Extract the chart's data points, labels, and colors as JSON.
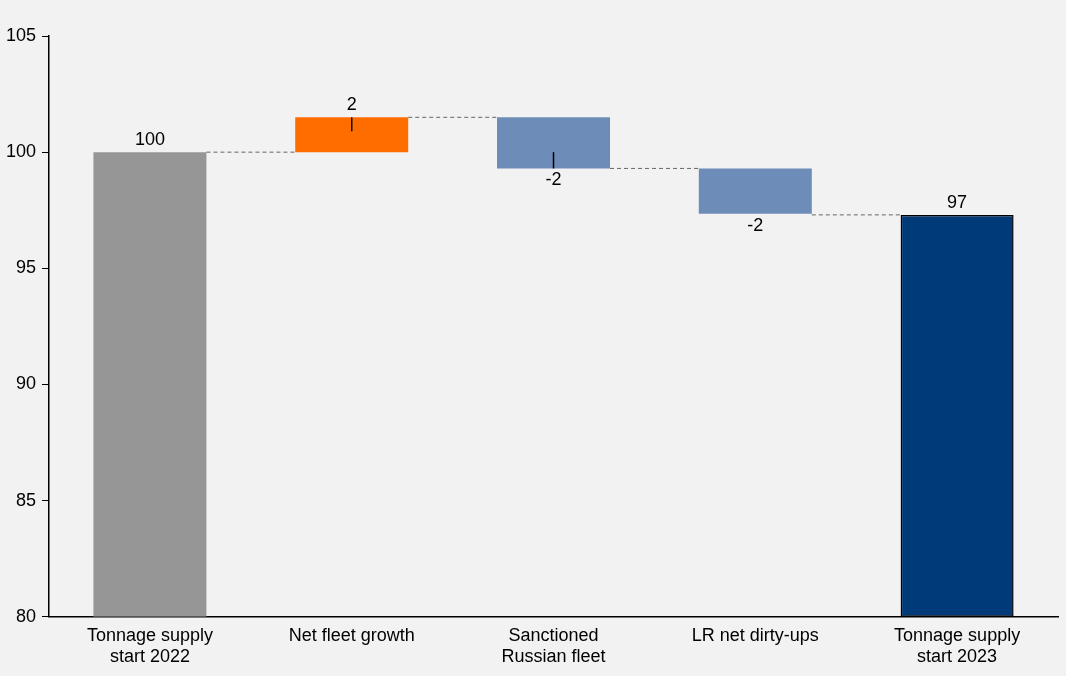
{
  "chart_data": {
    "type": "bar",
    "categories": [
      "Tonnage supply start 2022",
      "Net fleet growth",
      "Sanctioned Russian fleet",
      "LR net dirty-ups",
      "Tonnage supply start 2023"
    ],
    "base": [
      80,
      100,
      101.5,
      99.3,
      80
    ],
    "values": [
      20,
      1.5,
      -2.2,
      -1.95,
      17.3
    ],
    "colors": [
      "#969696",
      "#ff6d00",
      "#6e8cb8",
      "#6e8cb8",
      "#003a78"
    ],
    "value_labels": [
      "100",
      "2",
      "-2",
      "-2",
      "97"
    ],
    "errors": [
      null,
      [
        100.9,
        101.5
      ],
      [
        99.3,
        100
      ],
      null,
      null
    ],
    "ref_lines": [
      {
        "axis": "y",
        "value": 100,
        "color": "#666666",
        "line_style": "dashed"
      },
      {
        "axis": "y",
        "value": 101.5,
        "color": "#666666",
        "line_style": "dashed"
      },
      {
        "axis": "y",
        "value": 99.3,
        "color": "#666666",
        "line_style": "dashed"
      },
      {
        "axis": "y",
        "value": 97.3,
        "color": "#666666",
        "line_style": "dashed"
      }
    ],
    "ylim": [
      80,
      105
    ],
    "yticks": [
      80,
      85,
      90,
      95,
      100,
      105
    ],
    "grid": false,
    "legend": false
  }
}
